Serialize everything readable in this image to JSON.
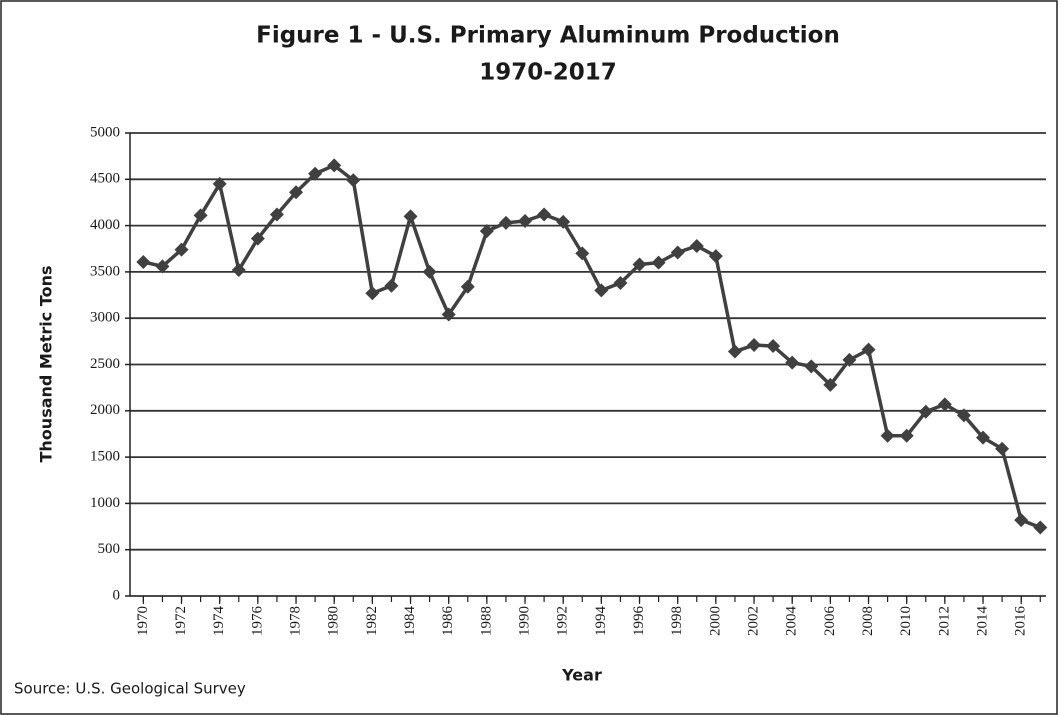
{
  "chart_data": {
    "type": "line",
    "title": "Figure 1 - U.S. Primary Aluminum Production",
    "subtitle": "1970-2017",
    "x_label": "Year",
    "y_label": "Thousand Metric Tons",
    "annotation": "Source: U.S. Geological Survey",
    "x": [
      1970,
      1971,
      1972,
      1973,
      1974,
      1975,
      1976,
      1977,
      1978,
      1979,
      1980,
      1981,
      1982,
      1983,
      1984,
      1985,
      1986,
      1987,
      1988,
      1989,
      1990,
      1991,
      1992,
      1993,
      1994,
      1995,
      1996,
      1997,
      1998,
      1999,
      2000,
      2001,
      2002,
      2003,
      2004,
      2005,
      2006,
      2007,
      2008,
      2009,
      2010,
      2011,
      2012,
      2013,
      2014,
      2015,
      2016,
      2017
    ],
    "values": [
      3607,
      3560,
      3740,
      4110,
      4450,
      3520,
      3860,
      4120,
      4360,
      4560,
      4650,
      4490,
      3270,
      3350,
      4100,
      3500,
      3040,
      3340,
      3940,
      4030,
      4050,
      4120,
      4040,
      3700,
      3300,
      3380,
      3580,
      3600,
      3710,
      3780,
      3670,
      2640,
      2710,
      2700,
      2520,
      2480,
      2280,
      2550,
      2660,
      1730,
      1730,
      1990,
      2070,
      1950,
      1710,
      1590,
      820,
      740
    ],
    "color": "#404040",
    "xlim": [
      1969.3,
      2017.3
    ],
    "xticks": [
      1970,
      1972,
      1974,
      1976,
      1978,
      1980,
      1982,
      1984,
      1986,
      1988,
      1990,
      1992,
      1994,
      1996,
      1998,
      2000,
      2002,
      2004,
      2006,
      2008,
      2010,
      2012,
      2014,
      2016
    ],
    "ylim": [
      0,
      5000
    ],
    "yticks": [
      0,
      500,
      1000,
      1500,
      2000,
      2500,
      3000,
      3500,
      4000,
      4500,
      5000
    ],
    "grid": true
  }
}
